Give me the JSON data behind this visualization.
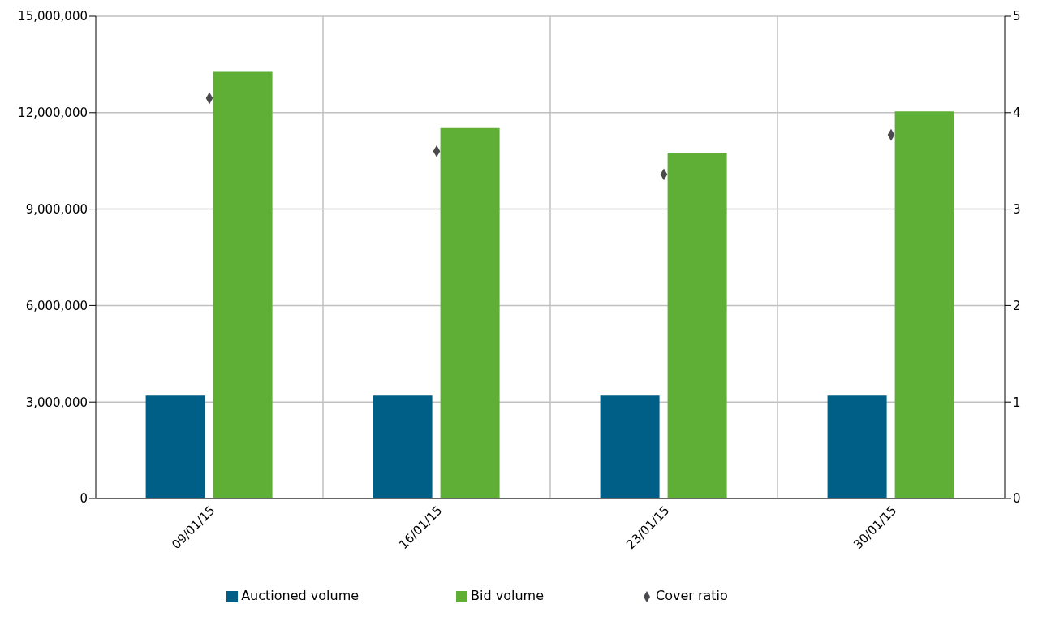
{
  "chart_data": {
    "type": "bar",
    "categories": [
      "09/01/15",
      "16/01/15",
      "23/01/15",
      "30/01/15"
    ],
    "series": [
      {
        "name": "Auctioned volume",
        "color": "#005f87",
        "values": [
          3200000,
          3200000,
          3200000,
          3200000
        ]
      },
      {
        "name": "Bid volume",
        "color": "#5fae36",
        "values": [
          13270000,
          11520000,
          10760000,
          12040000
        ]
      },
      {
        "name": "Cover ratio",
        "type": "scatter",
        "axis": "y2",
        "color": "#4a4a4e",
        "marker": "diamond",
        "x": [
          "09/01/15",
          "16/01/15",
          "23/01/15",
          "30/01/15"
        ],
        "values": [
          4.15,
          3.6,
          3.36,
          3.77
        ]
      }
    ],
    "ylim": [
      0,
      15000000
    ],
    "yticks": [
      {
        "value": 0,
        "label": "0"
      },
      {
        "value": 3000000,
        "label": "3,000,000"
      },
      {
        "value": 6000000,
        "label": "6,000,000"
      },
      {
        "value": 9000000,
        "label": "9,000,000"
      },
      {
        "value": 12000000,
        "label": "12,000,000"
      },
      {
        "value": 15000000,
        "label": "15,000,000"
      }
    ],
    "y2lim": [
      0,
      5
    ],
    "y2ticks": [
      0,
      1,
      2,
      3,
      4,
      5
    ],
    "grid": true,
    "legend": "bottom"
  }
}
